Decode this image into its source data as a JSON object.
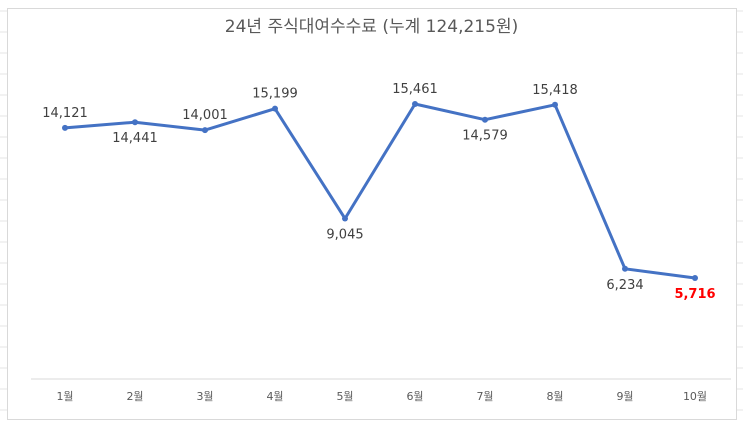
{
  "chart_data": {
    "type": "line",
    "title": "24년 주식대여수수료 (누계 124,215원)",
    "categories": [
      "1월",
      "2월",
      "3월",
      "4월",
      "5월",
      "6월",
      "7월",
      "8월",
      "9월",
      "10월"
    ],
    "values": [
      14121,
      14441,
      14001,
      15199,
      9045,
      15461,
      14579,
      15418,
      6234,
      5716
    ],
    "data_labels": [
      "14,121",
      "14,441",
      "14,001",
      "15,199",
      "9,045",
      "15,461",
      "14,579",
      "15,418",
      "6,234",
      "5,716"
    ],
    "highlight": {
      "index": 9,
      "color": "#ff0000"
    },
    "line_color": "#4472c4",
    "label_color": "#404040",
    "grid": false,
    "legend": "none"
  }
}
